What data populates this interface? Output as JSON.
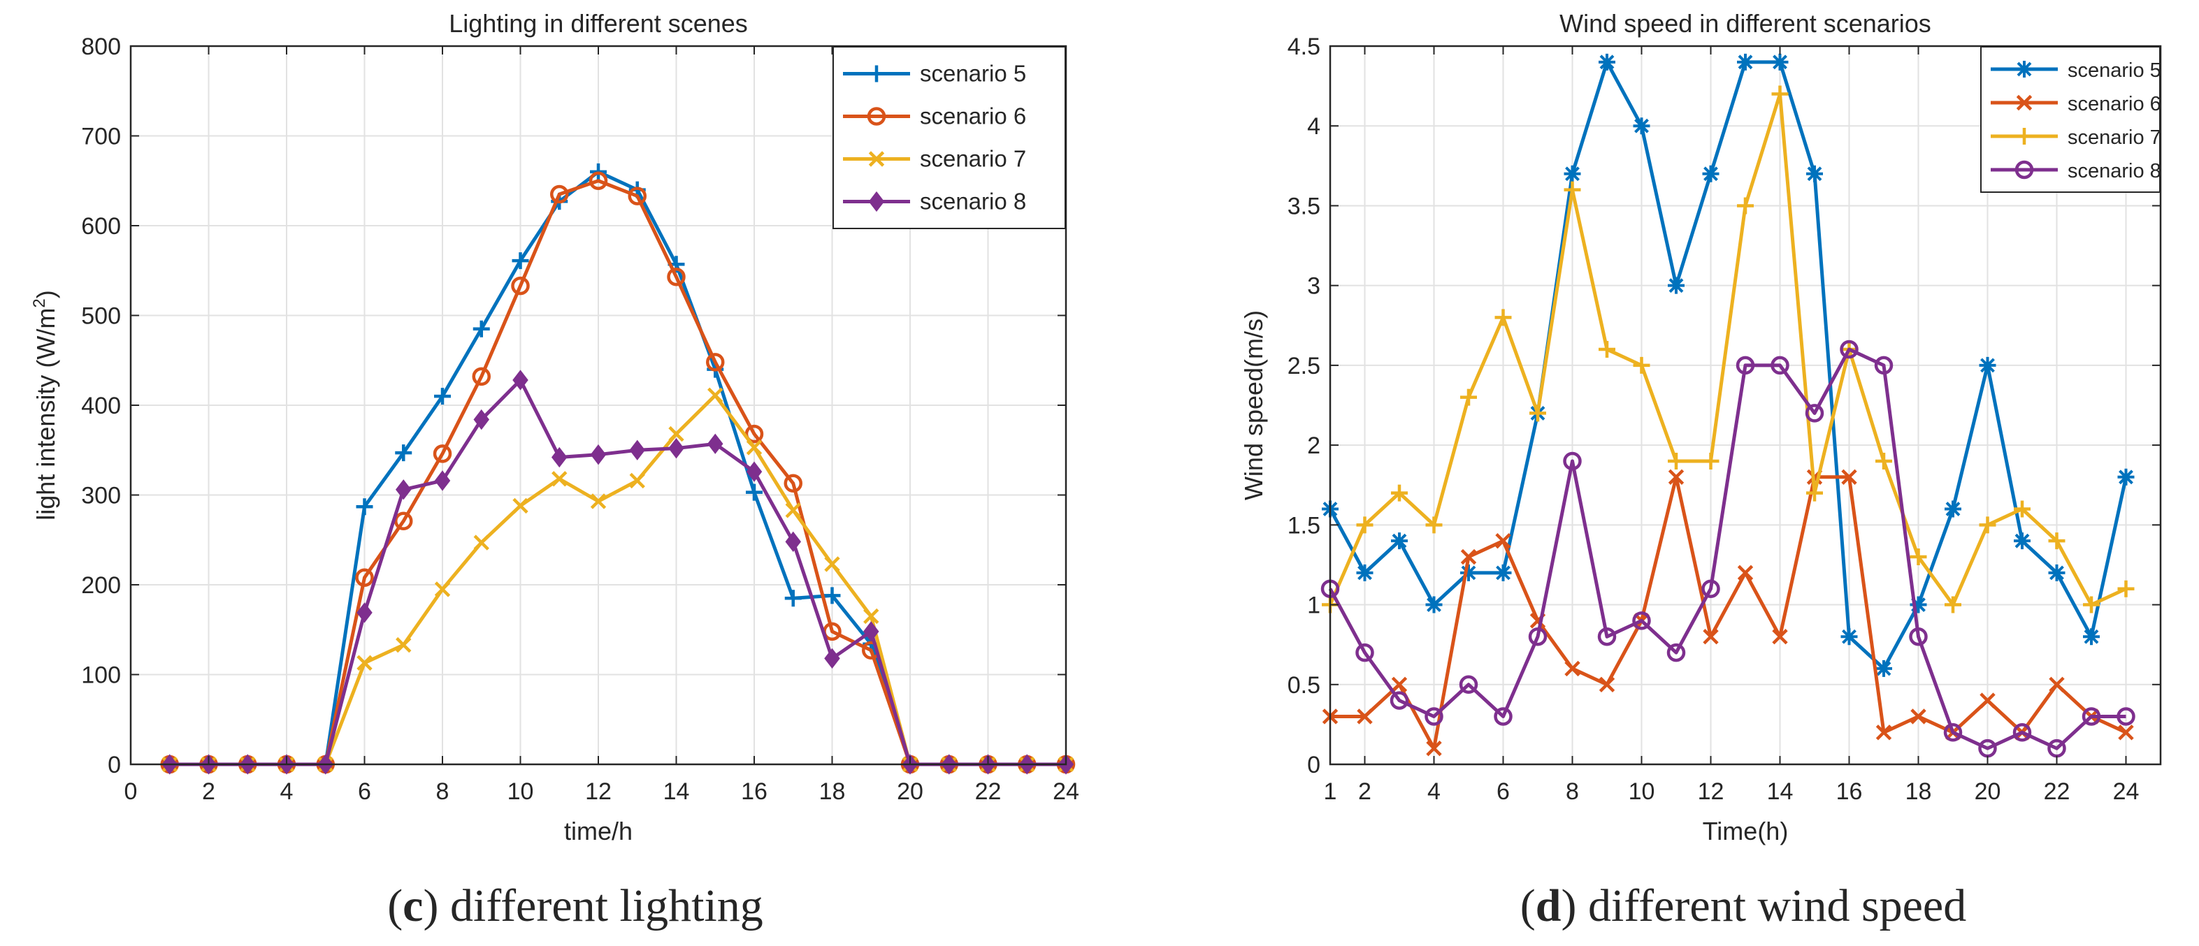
{
  "chart_data": [
    {
      "type": "line",
      "panel": "c",
      "title": "Lighting in different scenes",
      "xlabel": "time/h",
      "ylabel": "light intensity (W/m",
      "ylabel_sup": "2",
      "ylabel_close": ")",
      "xlim": [
        0,
        24
      ],
      "ylim": [
        0,
        800
      ],
      "xticks": [
        0,
        2,
        4,
        6,
        8,
        10,
        12,
        14,
        16,
        18,
        20,
        22,
        24
      ],
      "yticks": [
        0,
        100,
        200,
        300,
        400,
        500,
        600,
        700,
        800
      ],
      "grid": true,
      "legend_position": "top-right",
      "x": [
        1,
        2,
        3,
        4,
        5,
        6,
        7,
        8,
        9,
        10,
        11,
        12,
        13,
        14,
        15,
        16,
        17,
        18,
        19,
        20,
        21,
        22,
        23,
        24
      ],
      "series": [
        {
          "name": "scenario 5",
          "color": "#0072BD",
          "marker": "plus",
          "values": [
            0,
            0,
            0,
            0,
            0,
            287,
            347,
            410,
            485,
            561,
            627,
            660,
            640,
            557,
            440,
            303,
            185,
            188,
            134,
            0,
            0,
            0,
            0,
            0
          ]
        },
        {
          "name": "scenario 6",
          "color": "#D95319",
          "marker": "circle",
          "values": [
            0,
            0,
            0,
            0,
            0,
            208,
            271,
            346,
            432,
            533,
            635,
            650,
            633,
            543,
            448,
            368,
            313,
            148,
            127,
            0,
            0,
            0,
            0,
            0
          ]
        },
        {
          "name": "scenario 7",
          "color": "#EDB120",
          "marker": "x",
          "values": [
            0,
            0,
            0,
            0,
            0,
            113,
            133,
            195,
            247,
            288,
            318,
            293,
            316,
            368,
            411,
            353,
            283,
            223,
            165,
            0,
            0,
            0,
            0,
            0
          ]
        },
        {
          "name": "scenario 8",
          "color": "#7E2F8E",
          "marker": "diamond",
          "values": [
            0,
            0,
            0,
            0,
            0,
            169,
            306,
            316,
            384,
            428,
            342,
            345,
            350,
            352,
            357,
            326,
            248,
            118,
            148,
            0,
            0,
            0,
            0,
            0
          ]
        }
      ],
      "caption_letter": "c",
      "caption_text": ") different lighting"
    },
    {
      "type": "line",
      "panel": "d",
      "title": "Wind speed in different scenarios",
      "xlabel": "Time(h)",
      "ylabel": "Wind speed(m/s)",
      "xlim": [
        1,
        25
      ],
      "ylim": [
        0,
        4.5
      ],
      "xticks": [
        1,
        2,
        4,
        6,
        8,
        10,
        12,
        14,
        16,
        18,
        20,
        22,
        24
      ],
      "yticks": [
        0,
        0.5,
        1,
        1.5,
        2,
        2.5,
        3,
        3.5,
        4,
        4.5
      ],
      "grid": true,
      "legend_position": "top-right",
      "x": [
        1,
        2,
        3,
        4,
        5,
        6,
        7,
        8,
        9,
        10,
        11,
        12,
        13,
        14,
        15,
        16,
        17,
        18,
        19,
        20,
        21,
        22,
        23,
        24
      ],
      "series": [
        {
          "name": "scenario 5",
          "color": "#0072BD",
          "marker": "asterisk",
          "values": [
            1.6,
            1.2,
            1.4,
            1.0,
            1.2,
            1.2,
            2.2,
            3.7,
            4.4,
            4.0,
            3.0,
            3.7,
            4.4,
            4.4,
            3.7,
            0.8,
            0.6,
            1.0,
            1.6,
            2.5,
            1.4,
            1.2,
            0.8,
            1.8
          ]
        },
        {
          "name": "scenario 6",
          "color": "#D95319",
          "marker": "x",
          "values": [
            0.3,
            0.3,
            0.5,
            0.1,
            1.3,
            1.4,
            0.9,
            0.6,
            0.5,
            0.9,
            1.8,
            0.8,
            1.2,
            0.8,
            1.8,
            1.8,
            0.2,
            0.3,
            0.2,
            0.4,
            0.2,
            0.5,
            0.3,
            0.2
          ]
        },
        {
          "name": "scenario 7",
          "color": "#EDB120",
          "marker": "plus",
          "values": [
            1.0,
            1.5,
            1.7,
            1.5,
            2.3,
            2.8,
            2.2,
            3.6,
            2.6,
            2.5,
            1.9,
            1.9,
            3.5,
            4.2,
            1.7,
            2.6,
            1.9,
            1.3,
            1.0,
            1.5,
            1.6,
            1.4,
            1.0,
            1.1
          ]
        },
        {
          "name": "scenario 8",
          "color": "#7E2F8E",
          "marker": "circle",
          "values": [
            1.1,
            0.7,
            0.4,
            0.3,
            0.5,
            0.3,
            0.8,
            1.9,
            0.8,
            0.9,
            0.7,
            1.1,
            2.5,
            2.5,
            2.2,
            2.6,
            2.5,
            0.8,
            0.2,
            0.1,
            0.2,
            0.1,
            0.3,
            0.3
          ]
        }
      ],
      "caption_letter": "d",
      "caption_text": ") different wind speed"
    }
  ]
}
